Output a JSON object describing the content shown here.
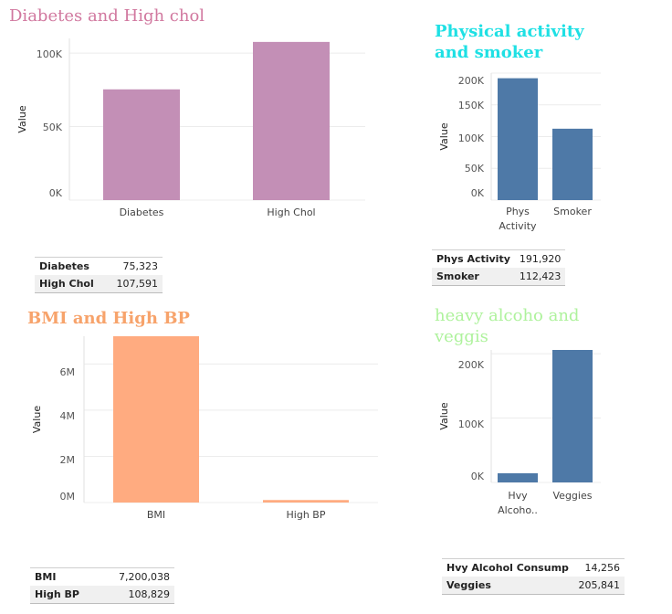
{
  "chart_data": [
    {
      "type": "bar",
      "title": "Diabetes and High chol",
      "title_color": "#d1789f",
      "bar_color": "#c38fb6",
      "ylabel": "Value",
      "categories": [
        "Diabetes",
        "High Chol"
      ],
      "values": [
        75323,
        107591
      ],
      "ylim": [
        0,
        110000
      ],
      "yticks": [
        0,
        50000,
        100000
      ],
      "ytick_labels": [
        "0K",
        "50K",
        "100K"
      ],
      "grid": true
    },
    {
      "type": "bar",
      "title": "Physical activity and smoker",
      "title_color": "#1ee0e4",
      "bar_color": "#4e79a7",
      "ylabel": "Value",
      "categories": [
        "Phys Activity",
        "Smoker"
      ],
      "values": [
        191920,
        112423
      ],
      "ylim": [
        0,
        200000
      ],
      "yticks": [
        0,
        50000,
        100000,
        150000,
        200000
      ],
      "ytick_labels": [
        "0K",
        "50K",
        "100K",
        "150K",
        "200K"
      ],
      "grid": true
    },
    {
      "type": "bar",
      "title": "BMI and High BP",
      "title_color": "#f7a36b",
      "bar_color": "#ffab80",
      "ylabel": "Value",
      "categories": [
        "BMI",
        "High BP"
      ],
      "values": [
        7200038,
        108829
      ],
      "ylim": [
        0,
        7200038
      ],
      "yticks": [
        0,
        2000000,
        4000000,
        6000000
      ],
      "ytick_labels": [
        "0M",
        "2M",
        "4M",
        "6M"
      ],
      "grid": true
    },
    {
      "type": "bar",
      "title": "heavy alcoho and veggis",
      "title_color": "#aef29c",
      "bar_color": "#4e79a7",
      "ylabel": "Value",
      "categories": [
        "Hvy Alcoho..",
        "Veggies"
      ],
      "values": [
        14256,
        205841
      ],
      "ylim": [
        0,
        205841
      ],
      "yticks": [
        0,
        100000,
        200000
      ],
      "ytick_labels": [
        "0K",
        "100K",
        "200K"
      ],
      "grid": true
    }
  ],
  "tables": [
    {
      "rows": [
        {
          "label": "Diabetes",
          "value": "75,323"
        },
        {
          "label": "High Chol",
          "value": "107,591"
        }
      ]
    },
    {
      "rows": [
        {
          "label": "Phys Activity",
          "value": "191,920"
        },
        {
          "label": "Smoker",
          "value": "112,423"
        }
      ]
    },
    {
      "rows": [
        {
          "label": "BMI",
          "value": "7,200,038"
        },
        {
          "label": "High BP",
          "value": "108,829"
        }
      ]
    },
    {
      "rows": [
        {
          "label": "Hvy Alcohol Consump",
          "value": "14,256"
        },
        {
          "label": "Veggies",
          "value": "205,841"
        }
      ]
    }
  ]
}
